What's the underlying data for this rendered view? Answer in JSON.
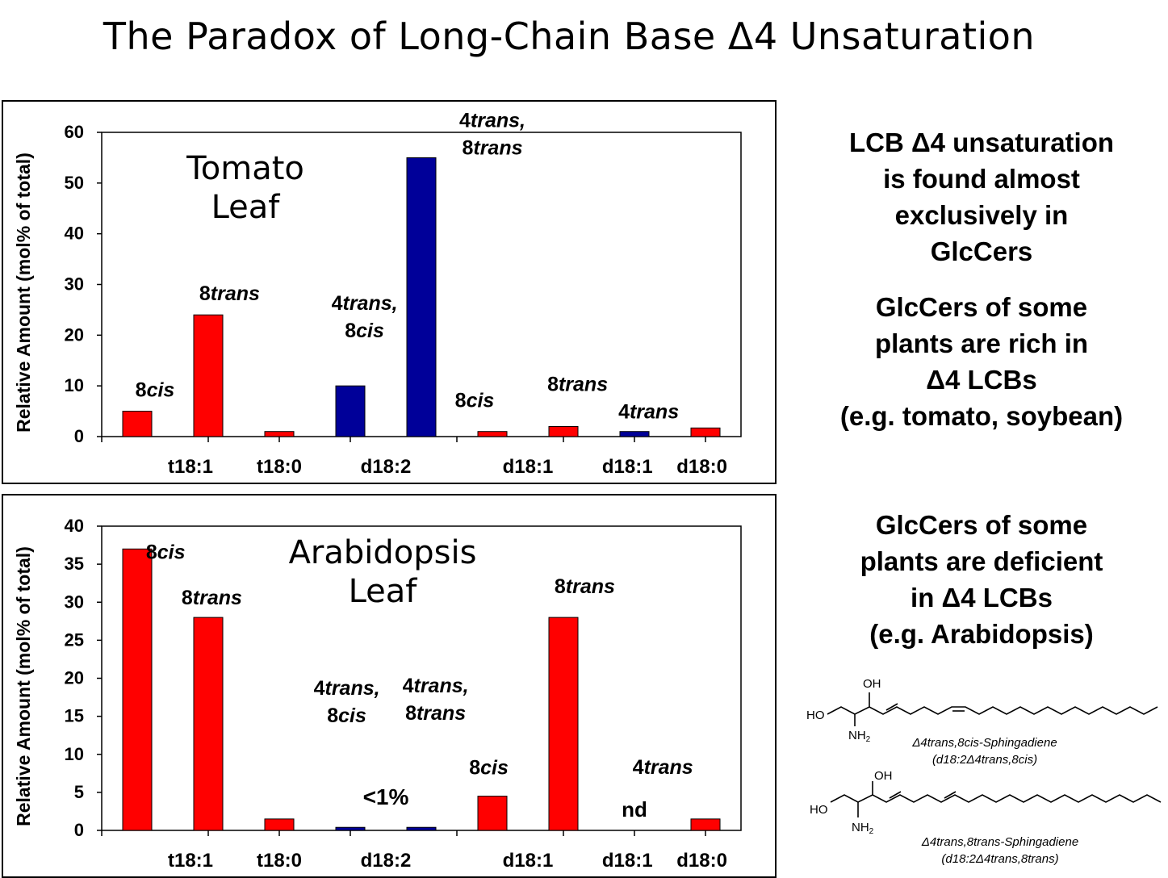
{
  "slide": {
    "title": "The Paradox of Long-Chain Base Δ4 Unsaturation"
  },
  "colors": {
    "red": "#ff0000",
    "blue": "#000099"
  },
  "chart_data": [
    {
      "type": "bar",
      "panel_label": [
        "Tomato",
        "Leaf"
      ],
      "ylabel": "Relative Amount (mol% of total)",
      "ylim": [
        0,
        60
      ],
      "yticks": [
        0,
        10,
        20,
        30,
        40,
        50,
        60
      ],
      "xticklabels": [
        "t18:1",
        "t18:0",
        "d18:2",
        "d18:1",
        "d18:1",
        "d18:0"
      ],
      "bars": [
        {
          "value": 5,
          "color": "red",
          "label": [
            "8cis"
          ]
        },
        {
          "value": 24,
          "color": "red",
          "label": [
            "8trans"
          ]
        },
        {
          "value": 1,
          "color": "red",
          "label": []
        },
        {
          "value": 10,
          "color": "blue",
          "label": [
            "4trans,",
            "8cis"
          ]
        },
        {
          "value": 55,
          "color": "blue",
          "label": [
            "4trans,",
            "8trans"
          ]
        },
        {
          "value": 1,
          "color": "red",
          "label": [
            "8cis"
          ]
        },
        {
          "value": 2,
          "color": "red",
          "label": [
            "8trans"
          ]
        },
        {
          "value": 1,
          "color": "blue",
          "label": [
            "4trans"
          ]
        },
        {
          "value": 1.7,
          "color": "red",
          "label": []
        }
      ],
      "annotations": []
    },
    {
      "type": "bar",
      "panel_label": [
        "Arabidopsis",
        "Leaf"
      ],
      "ylabel": "Relative Amount (mol% of total)",
      "ylim": [
        0,
        40
      ],
      "yticks": [
        0,
        5,
        10,
        15,
        20,
        25,
        30,
        35,
        40
      ],
      "xticklabels": [
        "t18:1",
        "t18:0",
        "d18:2",
        "d18:1",
        "d18:1",
        "d18:0"
      ],
      "bars": [
        {
          "value": 37,
          "color": "red",
          "label": [
            "8cis"
          ]
        },
        {
          "value": 28,
          "color": "red",
          "label": [
            "8trans"
          ]
        },
        {
          "value": 1.5,
          "color": "red",
          "label": []
        },
        {
          "value": 0.4,
          "color": "blue",
          "label": [
            "4trans,",
            "8cis"
          ]
        },
        {
          "value": 0.4,
          "color": "blue",
          "label": [
            "4trans,",
            "8trans"
          ]
        },
        {
          "value": 4.5,
          "color": "red",
          "label": [
            "8cis"
          ]
        },
        {
          "value": 28,
          "color": "red",
          "label": [
            "8trans"
          ]
        },
        {
          "value": 0,
          "color": "blue",
          "label": [
            "4trans"
          ]
        },
        {
          "value": 1.5,
          "color": "red",
          "label": []
        }
      ],
      "annotations": [
        "<1%",
        "nd"
      ]
    }
  ],
  "side_text": {
    "block1": [
      "LCB Δ4 unsaturation",
      "is found almost",
      "exclusively in",
      "GlcCers"
    ],
    "block2": [
      "GlcCers of some",
      "plants are rich in",
      "Δ4 LCBs",
      "(e.g. tomato, soybean)"
    ],
    "block3": [
      "GlcCers of some",
      "plants are deficient",
      "in Δ4 LCBs",
      "(e.g. Arabidopsis)"
    ]
  },
  "structures": [
    {
      "labels": {
        "oh": "OH",
        "ho": "HO",
        "nh2": "NH",
        "nh2_sub": "2"
      },
      "name": "Δ4trans,8cis-Sphingadiene",
      "formula": "(d18:2Δ4trans,8cis)"
    },
    {
      "labels": {
        "oh": "OH",
        "ho": "HO",
        "nh2": "NH",
        "nh2_sub": "2"
      },
      "name": "Δ4trans,8trans-Sphingadiene",
      "formula": "(d18:2Δ4trans,8trans)"
    }
  ]
}
